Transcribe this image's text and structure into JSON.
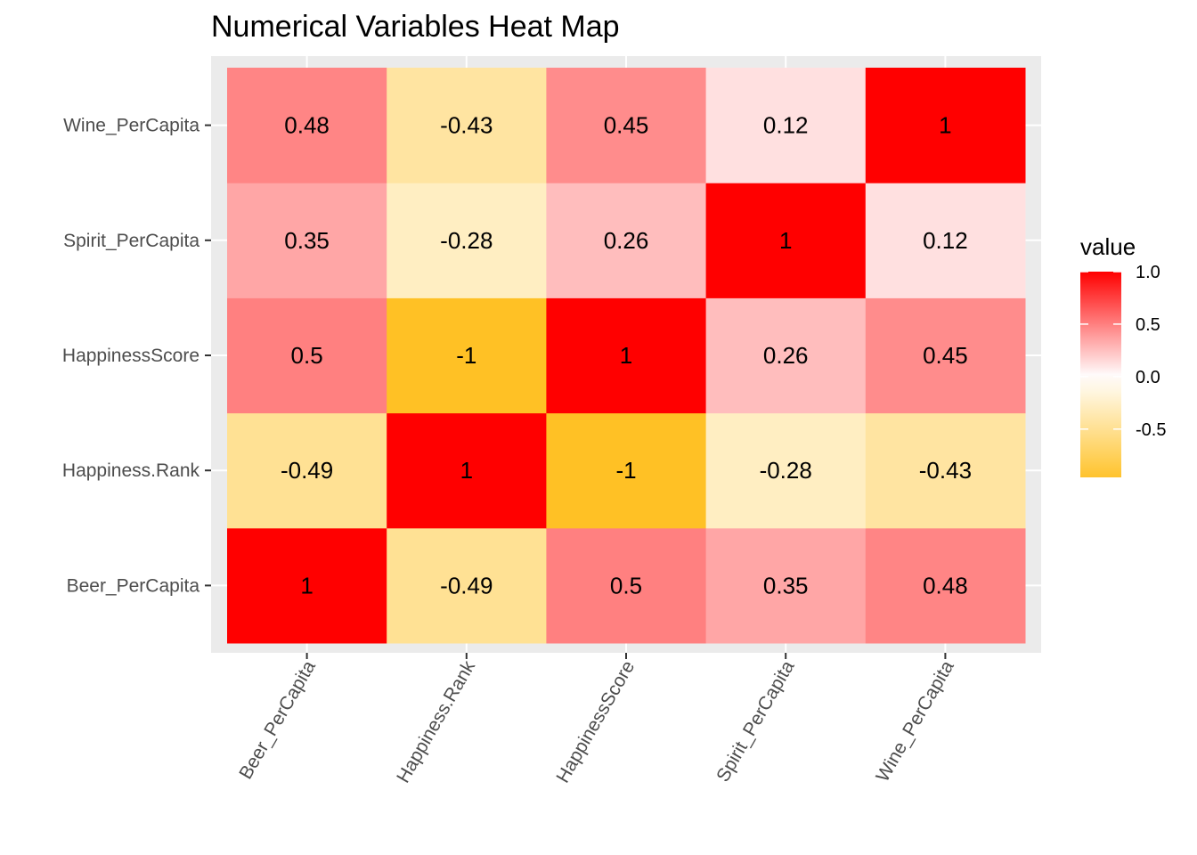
{
  "chart_data": {
    "type": "heatmap",
    "title": "Numerical Variables Heat Map",
    "x_categories": [
      "Beer_PerCapita",
      "Happiness.Rank",
      "HappinessScore",
      "Spirit_PerCapita",
      "Wine_PerCapita"
    ],
    "y_categories": [
      "Beer_PerCapita",
      "Happiness.Rank",
      "HappinessScore",
      "Spirit_PerCapita",
      "Wine_PerCapita"
    ],
    "values": [
      [
        1,
        -0.49,
        0.5,
        0.35,
        0.48
      ],
      [
        -0.49,
        1,
        -1,
        -0.28,
        -0.43
      ],
      [
        0.5,
        -1,
        1,
        0.26,
        0.45
      ],
      [
        0.35,
        -0.28,
        0.26,
        1,
        0.12
      ],
      [
        0.48,
        -0.43,
        0.45,
        0.12,
        1
      ]
    ],
    "labels": [
      [
        "1",
        "-0.49",
        "0.5",
        "0.35",
        "0.48"
      ],
      [
        "-0.49",
        "1",
        "-1",
        "-0.28",
        "-0.43"
      ],
      [
        "0.5",
        "-1",
        "1",
        "0.26",
        "0.45"
      ],
      [
        "0.35",
        "-0.28",
        "0.26",
        "1",
        "0.12"
      ],
      [
        "0.48",
        "-0.43",
        "0.45",
        "0.12",
        "1"
      ]
    ],
    "legend": {
      "title": "value",
      "ticks": [
        {
          "value": 1.0,
          "label": "1.0"
        },
        {
          "value": 0.5,
          "label": "0.5"
        },
        {
          "value": 0.0,
          "label": "0.0"
        },
        {
          "value": -0.5,
          "label": "-0.5"
        }
      ],
      "range": [
        -1,
        1
      ],
      "placement": "right"
    },
    "colors": {
      "low": "#FFC125",
      "mid": "#FFFFFF",
      "high": "#FF0000",
      "panel_background": "#EBEBEB",
      "grid": "#FFFFFF"
    }
  }
}
